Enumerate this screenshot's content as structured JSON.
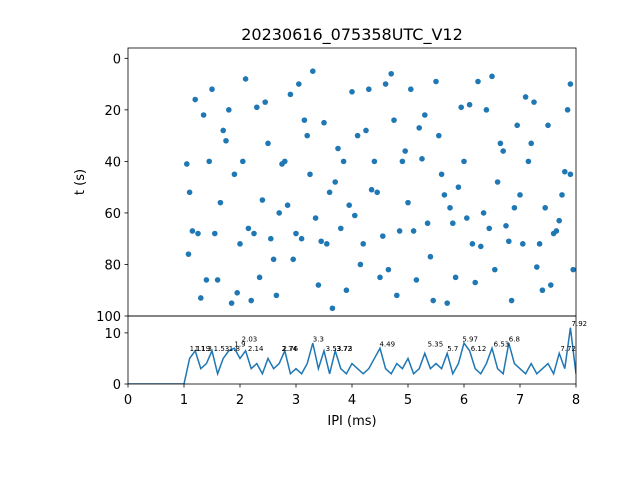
{
  "chart_data": [
    {
      "type": "scatter",
      "title": "20230616_075358UTC_V12",
      "ylabel": "t (s)",
      "color": "#1f77b4",
      "xlim": [
        0,
        8
      ],
      "ylim": [
        100,
        -4
      ],
      "yticks": [
        0,
        20,
        40,
        60,
        80,
        100
      ],
      "x": [
        1.05,
        1.2,
        1.35,
        1.5,
        1.7,
        1.9,
        2.1,
        2.3,
        2.5,
        2.7,
        2.9,
        3.1,
        3.3,
        3.5,
        3.7,
        3.9,
        4.1,
        4.3,
        4.5,
        4.7,
        4.9,
        5.1,
        5.3,
        5.5,
        5.7,
        5.9,
        6.1,
        6.3,
        6.5,
        6.7,
        6.9,
        7.1,
        7.3,
        7.5,
        7.7,
        7.9,
        1.1,
        1.25,
        1.45,
        1.6,
        1.8,
        2.0,
        2.2,
        2.4,
        2.6,
        2.8,
        3.0,
        3.2,
        3.4,
        3.6,
        3.8,
        4.0,
        4.2,
        4.4,
        4.6,
        4.8,
        5.0,
        5.2,
        5.4,
        5.6,
        5.8,
        6.0,
        6.2,
        6.4,
        6.6,
        6.8,
        7.0,
        7.2,
        7.4,
        7.6,
        7.8,
        7.95,
        1.15,
        1.3,
        1.55,
        1.75,
        1.95,
        2.15,
        2.35,
        2.55,
        2.75,
        2.95,
        3.15,
        3.35,
        3.55,
        3.75,
        3.95,
        4.15,
        4.35,
        4.55,
        4.75,
        4.95,
        5.15,
        5.35,
        5.55,
        5.75,
        5.95,
        6.15,
        6.35,
        6.55,
        6.75,
        6.95,
        7.15,
        7.35,
        7.55,
        7.75,
        7.85,
        1.08,
        1.4,
        1.65,
        1.85,
        2.05,
        2.25,
        2.45,
        2.65,
        2.85,
        3.05,
        3.25,
        3.45,
        3.65,
        3.85,
        4.05,
        4.25,
        4.45,
        4.65,
        4.85,
        5.05,
        5.25,
        5.45,
        5.65,
        5.85,
        6.05,
        6.25,
        6.45,
        6.65,
        6.85,
        7.05,
        7.25,
        7.45,
        7.65,
        7.9
      ],
      "values": [
        41,
        16,
        22,
        12,
        28,
        45,
        8,
        19,
        33,
        60,
        14,
        70,
        5,
        25,
        48,
        90,
        30,
        12,
        85,
        6,
        40,
        67,
        22,
        9,
        95,
        50,
        18,
        73,
        7,
        36,
        58,
        15,
        81,
        26,
        63,
        10,
        52,
        68,
        40,
        86,
        20,
        72,
        94,
        55,
        78,
        40,
        68,
        30,
        88,
        52,
        66,
        13,
        72,
        40,
        10,
        92,
        56,
        27,
        77,
        45,
        64,
        40,
        87,
        20,
        48,
        71,
        53,
        33,
        90,
        68,
        44,
        82,
        67,
        93,
        68,
        32,
        91,
        66,
        85,
        70,
        41,
        78,
        24,
        62,
        72,
        35,
        57,
        80,
        51,
        69,
        24,
        36,
        86,
        64,
        30,
        58,
        19,
        72,
        60,
        82,
        65,
        26,
        40,
        72,
        88,
        53,
        20,
        76,
        86,
        56,
        95,
        40,
        68,
        17,
        92,
        57,
        10,
        45,
        71,
        97,
        40,
        61,
        28,
        52,
        82,
        67,
        12,
        39,
        94,
        53,
        85,
        62,
        9,
        66,
        33,
        94,
        72,
        17,
        58,
        67,
        45
      ]
    },
    {
      "type": "line",
      "xlabel": "IPI (ms)",
      "color": "#1f77b4",
      "xlim": [
        0,
        8
      ],
      "xticks": [
        0,
        1,
        2,
        3,
        4,
        5,
        6,
        7,
        8
      ],
      "ylim": [
        0,
        13.3
      ],
      "yticks": [
        0,
        10
      ],
      "x": [
        0,
        0.1,
        0.2,
        0.3,
        0.4,
        0.5,
        0.6,
        0.7,
        0.8,
        0.9,
        1.0,
        1.1,
        1.2,
        1.3,
        1.4,
        1.5,
        1.6,
        1.7,
        1.8,
        1.9,
        2.0,
        2.1,
        2.2,
        2.3,
        2.4,
        2.5,
        2.6,
        2.7,
        2.8,
        2.9,
        3.0,
        3.1,
        3.2,
        3.3,
        3.4,
        3.5,
        3.6,
        3.7,
        3.8,
        3.9,
        4.0,
        4.1,
        4.2,
        4.3,
        4.4,
        4.5,
        4.6,
        4.7,
        4.8,
        4.9,
        5.0,
        5.1,
        5.2,
        5.3,
        5.4,
        5.5,
        5.6,
        5.7,
        5.8,
        5.9,
        6.0,
        6.1,
        6.2,
        6.3,
        6.4,
        6.5,
        6.6,
        6.7,
        6.8,
        6.9,
        7.0,
        7.1,
        7.2,
        7.3,
        7.4,
        7.5,
        7.6,
        7.7,
        7.8,
        7.9,
        8.0
      ],
      "values": [
        0,
        0,
        0,
        0,
        0,
        0,
        0,
        0,
        0,
        0,
        0,
        5,
        6.5,
        3,
        4,
        6.5,
        2,
        5,
        6.5,
        7,
        5,
        6.5,
        3,
        4,
        2,
        5,
        3,
        4,
        6.5,
        2,
        3,
        2,
        4,
        8,
        3,
        6.5,
        2,
        6.5,
        3,
        2,
        4,
        3,
        2,
        3,
        5,
        7,
        3,
        2,
        4,
        3,
        5,
        2,
        3,
        6,
        3,
        4,
        3,
        6,
        2,
        4,
        8,
        6.5,
        3,
        2,
        4,
        7,
        3,
        2,
        8,
        4,
        3,
        2,
        4,
        2,
        3,
        4,
        2,
        6,
        3,
        11,
        2
      ],
      "peaks": [
        {
          "x": 1.1,
          "y": 6.5
        },
        {
          "x": 1.19,
          "y": 6.5
        },
        {
          "x": 1.3,
          "y": 6.5
        },
        {
          "x": 1.53,
          "y": 6.5
        },
        {
          "x": 1.8,
          "y": 6.5
        },
        {
          "x": 1.9,
          "y": 7.3
        },
        {
          "x": 2.03,
          "y": 8.3
        },
        {
          "x": 2.14,
          "y": 6.5
        },
        {
          "x": 2.74,
          "y": 6.5
        },
        {
          "x": 2.76,
          "y": 6.5
        },
        {
          "x": 3.3,
          "y": 8.3
        },
        {
          "x": 3.53,
          "y": 6.5
        },
        {
          "x": 3.72,
          "y": 6.5
        },
        {
          "x": 3.73,
          "y": 6.5
        },
        {
          "x": 4.49,
          "y": 7.3
        },
        {
          "x": 5.35,
          "y": 7.3
        },
        {
          "x": 5.7,
          "y": 6.5
        },
        {
          "x": 5.97,
          "y": 8.3
        },
        {
          "x": 6.12,
          "y": 6.5
        },
        {
          "x": 6.53,
          "y": 7.3
        },
        {
          "x": 6.8,
          "y": 8.3
        },
        {
          "x": 7.72,
          "y": 6.5
        },
        {
          "x": 7.92,
          "y": 11.3
        }
      ]
    }
  ]
}
